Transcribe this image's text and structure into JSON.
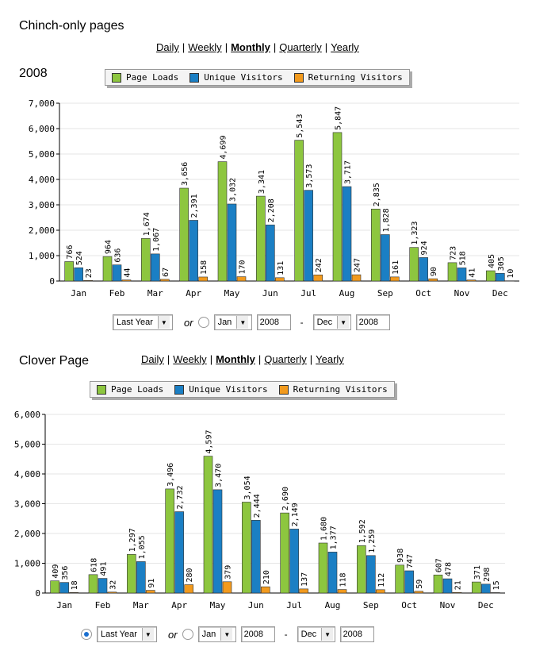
{
  "periods": [
    "Daily",
    "Weekly",
    "Monthly",
    "Quarterly",
    "Yearly"
  ],
  "active_period": "Monthly",
  "legend": [
    "Page Loads",
    "Unique Visitors",
    "Returning Visitors"
  ],
  "colors": {
    "page_loads": "#8dc63f",
    "unique": "#1b7fc4",
    "returning": "#f29a1d"
  },
  "controls": {
    "range": "Last Year",
    "or": "or",
    "from_month": "Jan",
    "from_year": "2008",
    "dash": "-",
    "to_month": "Dec",
    "to_year": "2008"
  },
  "section1": {
    "title": "Chinch-only pages",
    "year": "2008"
  },
  "section2": {
    "title": "Clover Page"
  },
  "chart_data": [
    {
      "type": "bar",
      "title": "2008",
      "categories": [
        "Jan",
        "Feb",
        "Mar",
        "Apr",
        "May",
        "Jun",
        "Jul",
        "Aug",
        "Sep",
        "Oct",
        "Nov",
        "Dec"
      ],
      "ylim": [
        0,
        7000
      ],
      "yticks": [
        0,
        1000,
        2000,
        3000,
        4000,
        5000,
        6000,
        7000
      ],
      "series": [
        {
          "name": "Page Loads",
          "values": [
            766,
            964,
            1674,
            3656,
            4699,
            3341,
            5543,
            5847,
            2835,
            1323,
            723,
            405
          ]
        },
        {
          "name": "Unique Visitors",
          "values": [
            524,
            636,
            1067,
            2391,
            3032,
            2208,
            3573,
            3717,
            1828,
            924,
            518,
            305
          ]
        },
        {
          "name": "Returning Visitors",
          "values": [
            23,
            44,
            67,
            158,
            170,
            131,
            242,
            247,
            161,
            90,
            41,
            10
          ]
        }
      ]
    },
    {
      "type": "bar",
      "title": "",
      "categories": [
        "Jan",
        "Feb",
        "Mar",
        "Apr",
        "May",
        "Jun",
        "Jul",
        "Aug",
        "Sep",
        "Oct",
        "Nov",
        "Dec"
      ],
      "ylim": [
        0,
        6000
      ],
      "yticks": [
        0,
        1000,
        2000,
        3000,
        4000,
        5000,
        6000
      ],
      "series": [
        {
          "name": "Page Loads",
          "values": [
            409,
            618,
            1297,
            3496,
            4597,
            3054,
            2690,
            1680,
            1592,
            938,
            607,
            371
          ]
        },
        {
          "name": "Unique Visitors",
          "values": [
            356,
            491,
            1055,
            2732,
            3470,
            2444,
            2149,
            1377,
            1259,
            747,
            478,
            298
          ]
        },
        {
          "name": "Returning Visitors",
          "values": [
            18,
            32,
            91,
            280,
            379,
            210,
            137,
            118,
            112,
            59,
            21,
            15
          ]
        }
      ]
    }
  ]
}
